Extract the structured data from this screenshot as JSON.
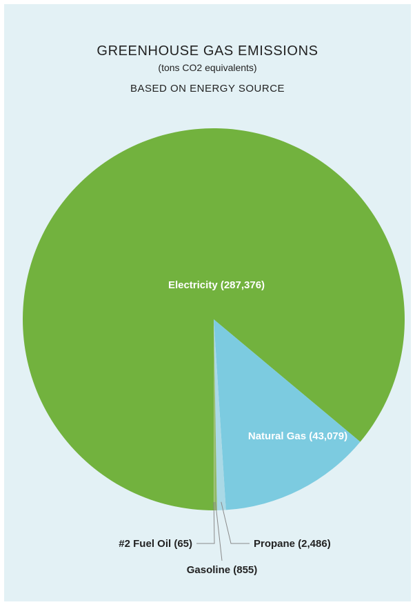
{
  "chart_data": {
    "type": "pie",
    "title": "GREENHOUSE GAS EMISSIONS",
    "subtitle": "(tons CO2 equivalents)",
    "subtitle2": "BASED ON ENERGY SOURCE",
    "categories": [
      "Electricity",
      "Natural Gas",
      "Propane",
      "Gasoline",
      "#2 Fuel Oil"
    ],
    "values": [
      287376,
      43079,
      2486,
      855,
      65
    ],
    "labels": [
      "Electricity (287,376)",
      "Natural Gas (43,079)",
      "Propane (2,486)",
      "Gasoline (855)",
      "#2 Fuel Oil (65)"
    ],
    "colors": [
      "#72b23e",
      "#7ccbe0",
      "#aad9e6",
      "#93b968",
      "#d2e6b0"
    ],
    "label_colors": [
      "#ffffff",
      "#ffffff",
      "#222222",
      "#222222",
      "#222222"
    ]
  }
}
